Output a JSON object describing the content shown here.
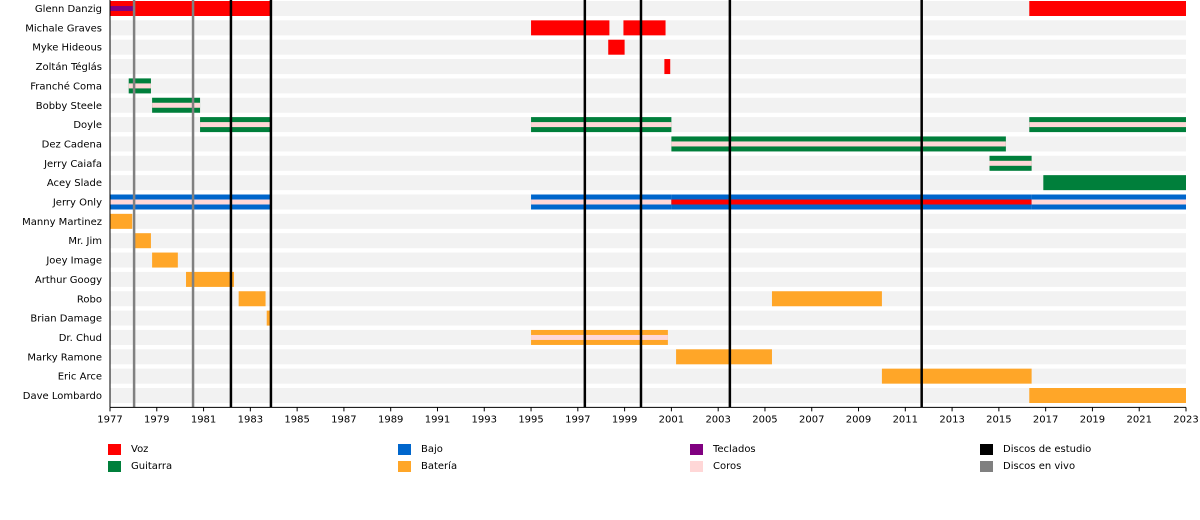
{
  "chart_data": {
    "type": "timeline",
    "xlim": [
      1977,
      2023
    ],
    "xticks": [
      1977,
      1979,
      1981,
      1983,
      1985,
      1987,
      1989,
      1991,
      1993,
      1995,
      1997,
      1999,
      2001,
      2003,
      2005,
      2007,
      2009,
      2011,
      2013,
      2015,
      2017,
      2019,
      2021,
      2023
    ],
    "colors": {
      "voz": "#ff0000",
      "guitarra": "#007f3b",
      "bajo": "#0066cc",
      "bateria": "#ffa628",
      "teclados": "#800080",
      "coros": "#ffd7d7",
      "studio": "#000000",
      "live": "#808080"
    },
    "members": [
      {
        "name": "Glenn Danzig",
        "bars": [
          {
            "role": "voz",
            "from": 1977,
            "to": 1983.84,
            "stripe": "teclados",
            "sfrom": 1977,
            "sto": 1978
          },
          {
            "role": "voz",
            "from": 2016.3,
            "to": 2023
          }
        ]
      },
      {
        "name": "Michale Graves",
        "bars": [
          {
            "role": "voz",
            "from": 1995,
            "to": 1998.35
          },
          {
            "role": "voz",
            "from": 1998.95,
            "to": 2000.75
          }
        ]
      },
      {
        "name": "Myke Hideous",
        "bars": [
          {
            "role": "voz",
            "from": 1998.3,
            "to": 1999
          }
        ]
      },
      {
        "name": "Zoltán Téglás",
        "bars": [
          {
            "role": "voz",
            "from": 2000.7,
            "to": 2000.95
          }
        ]
      },
      {
        "name": "Franché Coma",
        "bars": [
          {
            "role": "guitarra",
            "from": 1977.8,
            "to": 1978.75,
            "stripe": "coros"
          }
        ]
      },
      {
        "name": "Bobby Steele",
        "bars": [
          {
            "role": "guitarra",
            "from": 1978.8,
            "to": 1980.85,
            "stripe": "coros"
          }
        ]
      },
      {
        "name": "Doyle",
        "bars": [
          {
            "role": "guitarra",
            "from": 1980.85,
            "to": 1983.84,
            "stripe": "coros"
          },
          {
            "role": "guitarra",
            "from": 1995,
            "to": 2001,
            "stripe": "coros"
          },
          {
            "role": "guitarra",
            "from": 2016.3,
            "to": 2023,
            "stripe": "coros"
          }
        ]
      },
      {
        "name": "Dez Cadena",
        "bars": [
          {
            "role": "guitarra",
            "from": 2001,
            "to": 2015.3,
            "stripe": "coros"
          }
        ]
      },
      {
        "name": "Jerry Caiafa",
        "bars": [
          {
            "role": "guitarra",
            "from": 2014.6,
            "to": 2016.4,
            "stripe": "coros"
          }
        ]
      },
      {
        "name": "Acey Slade",
        "bars": [
          {
            "role": "guitarra",
            "from": 2016.9,
            "to": 2023
          }
        ]
      },
      {
        "name": "Jerry Only",
        "bars": [
          {
            "role": "bajo",
            "from": 1977,
            "to": 1983.84,
            "stripe": "coros"
          },
          {
            "role": "bajo",
            "from": 1995,
            "to": 2001,
            "stripe": "coros"
          },
          {
            "role": "bajo",
            "from": 2001,
            "to": 2016.4,
            "stripe": "voz"
          },
          {
            "role": "bajo",
            "from": 2016.4,
            "to": 2023,
            "stripe": "coros"
          }
        ]
      },
      {
        "name": "Manny Martinez",
        "bars": [
          {
            "role": "bateria",
            "from": 1977,
            "to": 1977.95
          }
        ]
      },
      {
        "name": "Mr. Jim",
        "bars": [
          {
            "role": "bateria",
            "from": 1978,
            "to": 1978.75
          }
        ]
      },
      {
        "name": "Joey Image",
        "bars": [
          {
            "role": "bateria",
            "from": 1978.8,
            "to": 1979.9
          }
        ]
      },
      {
        "name": "Arthur Googy",
        "bars": [
          {
            "role": "bateria",
            "from": 1980.25,
            "to": 1982.3
          }
        ]
      },
      {
        "name": "Robo",
        "bars": [
          {
            "role": "bateria",
            "from": 1982.5,
            "to": 1983.65
          },
          {
            "role": "bateria",
            "from": 2005.3,
            "to": 2010
          }
        ]
      },
      {
        "name": "Brian Damage",
        "bars": [
          {
            "role": "bateria",
            "from": 1983.7,
            "to": 1983.84
          }
        ]
      },
      {
        "name": "Dr. Chud",
        "bars": [
          {
            "role": "bateria",
            "from": 1995,
            "to": 2000.85,
            "stripe": "coros"
          }
        ]
      },
      {
        "name": "Marky Ramone",
        "bars": [
          {
            "role": "bateria",
            "from": 2001.2,
            "to": 2005.3
          }
        ]
      },
      {
        "name": "Eric Arce",
        "bars": [
          {
            "role": "bateria",
            "from": 2010,
            "to": 2016.4
          }
        ]
      },
      {
        "name": "Dave Lombardo",
        "bars": [
          {
            "role": "bateria",
            "from": 2016.3,
            "to": 2023
          }
        ]
      }
    ],
    "studio_albums": [
      1982.17,
      1983.88,
      1997.3,
      1999.7,
      2003.5,
      2011.7
    ],
    "live_albums": [
      1978.03,
      1980.55
    ],
    "legend": [
      {
        "key": "voz",
        "label": "Voz"
      },
      {
        "key": "guitarra",
        "label": "Guitarra"
      },
      {
        "key": "bajo",
        "label": "Bajo"
      },
      {
        "key": "bateria",
        "label": "Batería"
      },
      {
        "key": "teclados",
        "label": "Teclados"
      },
      {
        "key": "coros",
        "label": "Coros"
      },
      {
        "key": "studio",
        "label": "Discos de estudio"
      },
      {
        "key": "live",
        "label": "Discos en vivo"
      }
    ]
  }
}
